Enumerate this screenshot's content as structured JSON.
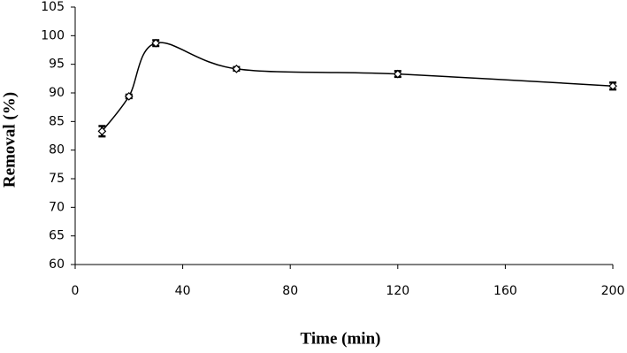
{
  "chart_data": {
    "type": "line",
    "xlabel": "Time (min)",
    "ylabel": "Removal (%)",
    "x": [
      10,
      20,
      30,
      60,
      120,
      200
    ],
    "values": [
      83.3,
      89.4,
      98.7,
      94.2,
      93.3,
      91.2
    ],
    "errors": [
      0.9,
      0.3,
      0.5,
      0.3,
      0.5,
      0.6
    ],
    "color": "#000000",
    "xlim": [
      0,
      200
    ],
    "xticks": [
      0,
      40,
      80,
      120,
      160,
      200
    ],
    "ylim": [
      60,
      105
    ],
    "yticks": [
      60,
      65,
      70,
      75,
      80,
      85,
      90,
      95,
      100,
      105
    ],
    "grid": false
  }
}
